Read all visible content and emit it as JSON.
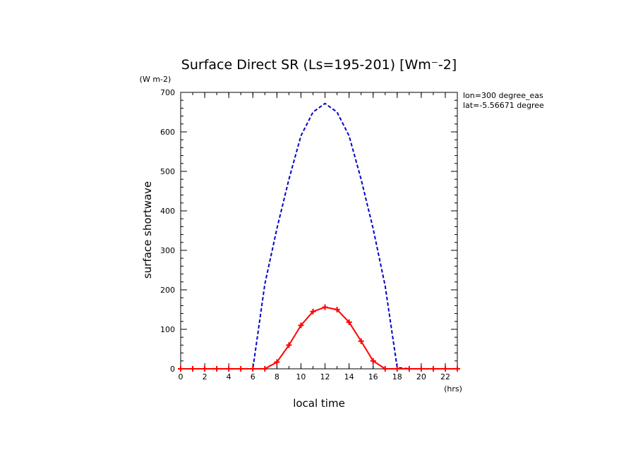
{
  "chart_data": {
    "type": "line",
    "title": "Surface Direct SR (Ls=195-201) [Wm⁻-2]",
    "xlabel": "local time",
    "ylabel": "surface shortwave",
    "x_unit": "(hrs)",
    "y_unit": "(W m-2)",
    "xlim": [
      0,
      23
    ],
    "ylim": [
      0,
      700
    ],
    "x_ticks": [
      0,
      2,
      4,
      6,
      8,
      10,
      12,
      14,
      16,
      18,
      20,
      22
    ],
    "y_ticks": [
      0,
      100,
      200,
      300,
      400,
      500,
      600,
      700
    ],
    "x": [
      0,
      1,
      2,
      3,
      4,
      5,
      6,
      7,
      8,
      9,
      10,
      11,
      12,
      13,
      14,
      15,
      16,
      17,
      18,
      19,
      20,
      21,
      22,
      23
    ],
    "series": [
      {
        "color": "#0000cc",
        "style": "dashed",
        "markers": false,
        "values": [
          0,
          0,
          0,
          0,
          0,
          0,
          0,
          215,
          355,
          480,
          590,
          650,
          672,
          650,
          590,
          480,
          355,
          210,
          3,
          0,
          0,
          0,
          0,
          0
        ]
      },
      {
        "color": "#ff0000",
        "style": "solid",
        "markers": true,
        "values": [
          0,
          0,
          0,
          0,
          0,
          0,
          0,
          0,
          17,
          60,
          110,
          145,
          156,
          150,
          118,
          70,
          20,
          0,
          0,
          0,
          0,
          0,
          0,
          0
        ]
      }
    ],
    "annotations": [
      "lon=300 degree_eas",
      "lat=-5.56671 degree"
    ],
    "grid": false,
    "legend": "none"
  }
}
